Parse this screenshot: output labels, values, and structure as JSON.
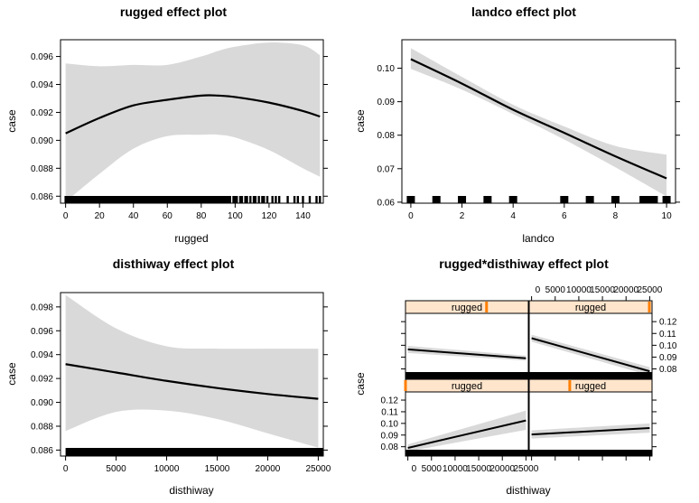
{
  "chart_data": [
    {
      "id": "rugged",
      "type": "line",
      "title": "rugged effect plot",
      "xlabel": "rugged",
      "ylabel": "case",
      "xlim": [
        -3,
        152
      ],
      "ylim": [
        0.0855,
        0.0972
      ],
      "xticks": [
        0,
        20,
        40,
        60,
        80,
        100,
        120,
        140
      ],
      "yticks": [
        0.086,
        0.088,
        0.09,
        0.092,
        0.094,
        0.096
      ],
      "ytick_labels": [
        "0.086",
        "0.088",
        "0.090",
        "0.092",
        "0.094",
        "0.096"
      ],
      "series": [
        {
          "x": [
            0,
            20,
            40,
            60,
            80,
            90,
            100,
            120,
            140,
            150
          ],
          "y": [
            0.0905,
            0.0916,
            0.0925,
            0.0929,
            0.0932,
            0.0932,
            0.0931,
            0.0927,
            0.0921,
            0.0917
          ],
          "lower": [
            0.0856,
            0.0876,
            0.0894,
            0.0903,
            0.0904,
            0.0904,
            0.0902,
            0.0893,
            0.088,
            0.0874
          ],
          "upper": [
            0.0955,
            0.0953,
            0.0954,
            0.0954,
            0.096,
            0.0964,
            0.0967,
            0.097,
            0.0968,
            0.0961
          ]
        }
      ],
      "rug": [
        0,
        1,
        2,
        3,
        4,
        5,
        6,
        7,
        8,
        9,
        10,
        11,
        12,
        13,
        14,
        15,
        16,
        17,
        18,
        19,
        20,
        21,
        22,
        23,
        24,
        25,
        26,
        27,
        28,
        29,
        30,
        31,
        32,
        33,
        34,
        35,
        36,
        37,
        38,
        39,
        40,
        41,
        42,
        43,
        44,
        45,
        46,
        47,
        48,
        49,
        50,
        51,
        52,
        53,
        54,
        55,
        56,
        57,
        58,
        59,
        60,
        61,
        62,
        63,
        64,
        65,
        66,
        67,
        68,
        69,
        70,
        71,
        72,
        73,
        74,
        75,
        76,
        77,
        78,
        79,
        80,
        81,
        82,
        83,
        84,
        85,
        86,
        87,
        88,
        89,
        90,
        91,
        92,
        93,
        94,
        95,
        96,
        97,
        99,
        100,
        101,
        103,
        104,
        106,
        107,
        109,
        111,
        112,
        114,
        116,
        117,
        119,
        122,
        124,
        126,
        131,
        135,
        137,
        140,
        144,
        148,
        150
      ]
    },
    {
      "id": "landco",
      "type": "line",
      "title": "landco effect plot",
      "xlabel": "landco",
      "ylabel": "case",
      "xlim": [
        -0.35,
        10.35
      ],
      "ylim": [
        0.0597,
        0.1085
      ],
      "xticks": [
        0,
        2,
        4,
        6,
        8,
        10
      ],
      "yticks": [
        0.06,
        0.07,
        0.08,
        0.09,
        0.1
      ],
      "ytick_labels": [
        "0.06",
        "0.07",
        "0.08",
        "0.09",
        "0.10"
      ],
      "series": [
        {
          "x": [
            0,
            2,
            4,
            6,
            8,
            10
          ],
          "y": [
            0.1027,
            0.0954,
            0.0876,
            0.0807,
            0.0737,
            0.0671
          ],
          "lower": [
            0.0998,
            0.0936,
            0.0863,
            0.0787,
            0.0704,
            0.0617
          ],
          "upper": [
            0.106,
            0.0974,
            0.0891,
            0.0826,
            0.0768,
            0.0742
          ]
        }
      ],
      "rug": [
        0,
        1,
        2,
        3,
        4,
        6,
        7,
        8,
        9.1,
        9.3,
        9.5,
        10
      ]
    },
    {
      "id": "disthiway",
      "type": "line",
      "title": "disthiway effect plot",
      "xlabel": "disthiway",
      "ylabel": "case",
      "xlim": [
        -500,
        25500
      ],
      "ylim": [
        0.0855,
        0.0992
      ],
      "xticks": [
        0,
        5000,
        10000,
        15000,
        20000,
        25000
      ],
      "yticks": [
        0.086,
        0.088,
        0.09,
        0.092,
        0.094,
        0.096,
        0.098
      ],
      "ytick_labels": [
        "0.086",
        "0.088",
        "0.090",
        "0.092",
        "0.094",
        "0.096",
        "0.098"
      ],
      "series": [
        {
          "x": [
            0,
            5000,
            10000,
            15000,
            20000,
            25000
          ],
          "y": [
            0.0932,
            0.0925,
            0.0918,
            0.0912,
            0.0907,
            0.0903
          ],
          "lower": [
            0.0876,
            0.0892,
            0.0893,
            0.0886,
            0.0874,
            0.0862
          ],
          "upper": [
            0.099,
            0.0962,
            0.0947,
            0.0945,
            0.0945,
            0.0945
          ]
        }
      ],
      "rug_range": [
        0,
        25500
      ]
    }
  ],
  "interaction": {
    "title": "rugged*disthiway effect plot",
    "xlabel": "disthiway",
    "ylabel": "case",
    "strip_label": "rugged",
    "xlim": [
      -500,
      25500
    ],
    "ylim": [
      0.072,
      0.127
    ],
    "xticks": [
      0,
      5000,
      10000,
      15000,
      20000,
      25000
    ],
    "xtick_labels": [
      "0",
      "5000",
      "10000",
      "15000",
      "20000",
      "25000"
    ],
    "yticks": [
      0.08,
      0.09,
      0.1,
      0.11,
      0.12
    ],
    "ytick_labels": [
      "0.08",
      "0.09",
      "0.10",
      "0.11",
      "0.12"
    ],
    "panels": [
      {
        "position": "top-left",
        "strip_fraction": 0.66,
        "x": [
          0,
          25000
        ],
        "y": [
          0.0965,
          0.089
        ],
        "lower": [
          0.0935,
          0.087
        ],
        "upper": [
          0.0995,
          0.0912
        ]
      },
      {
        "position": "top-right",
        "strip_fraction": 1.0,
        "x": [
          0,
          25000
        ],
        "y": [
          0.106,
          0.078
        ],
        "lower": [
          0.103,
          0.0745
        ],
        "upper": [
          0.109,
          0.0815
        ]
      },
      {
        "position": "bottom-left",
        "strip_fraction": 0.0,
        "x": [
          0,
          25000
        ],
        "y": [
          0.079,
          0.1025
        ],
        "lower": [
          0.076,
          0.0945
        ],
        "upper": [
          0.082,
          0.111
        ]
      },
      {
        "position": "bottom-right",
        "strip_fraction": 0.33,
        "x": [
          0,
          25000
        ],
        "y": [
          0.0905,
          0.096
        ],
        "lower": [
          0.087,
          0.092
        ],
        "upper": [
          0.094,
          0.1
        ]
      }
    ]
  },
  "colors": {
    "band": "#d9d9d9",
    "line": "#000000",
    "strip_bg": "#ffe5cc",
    "strip_marker": "#ff7f00"
  }
}
